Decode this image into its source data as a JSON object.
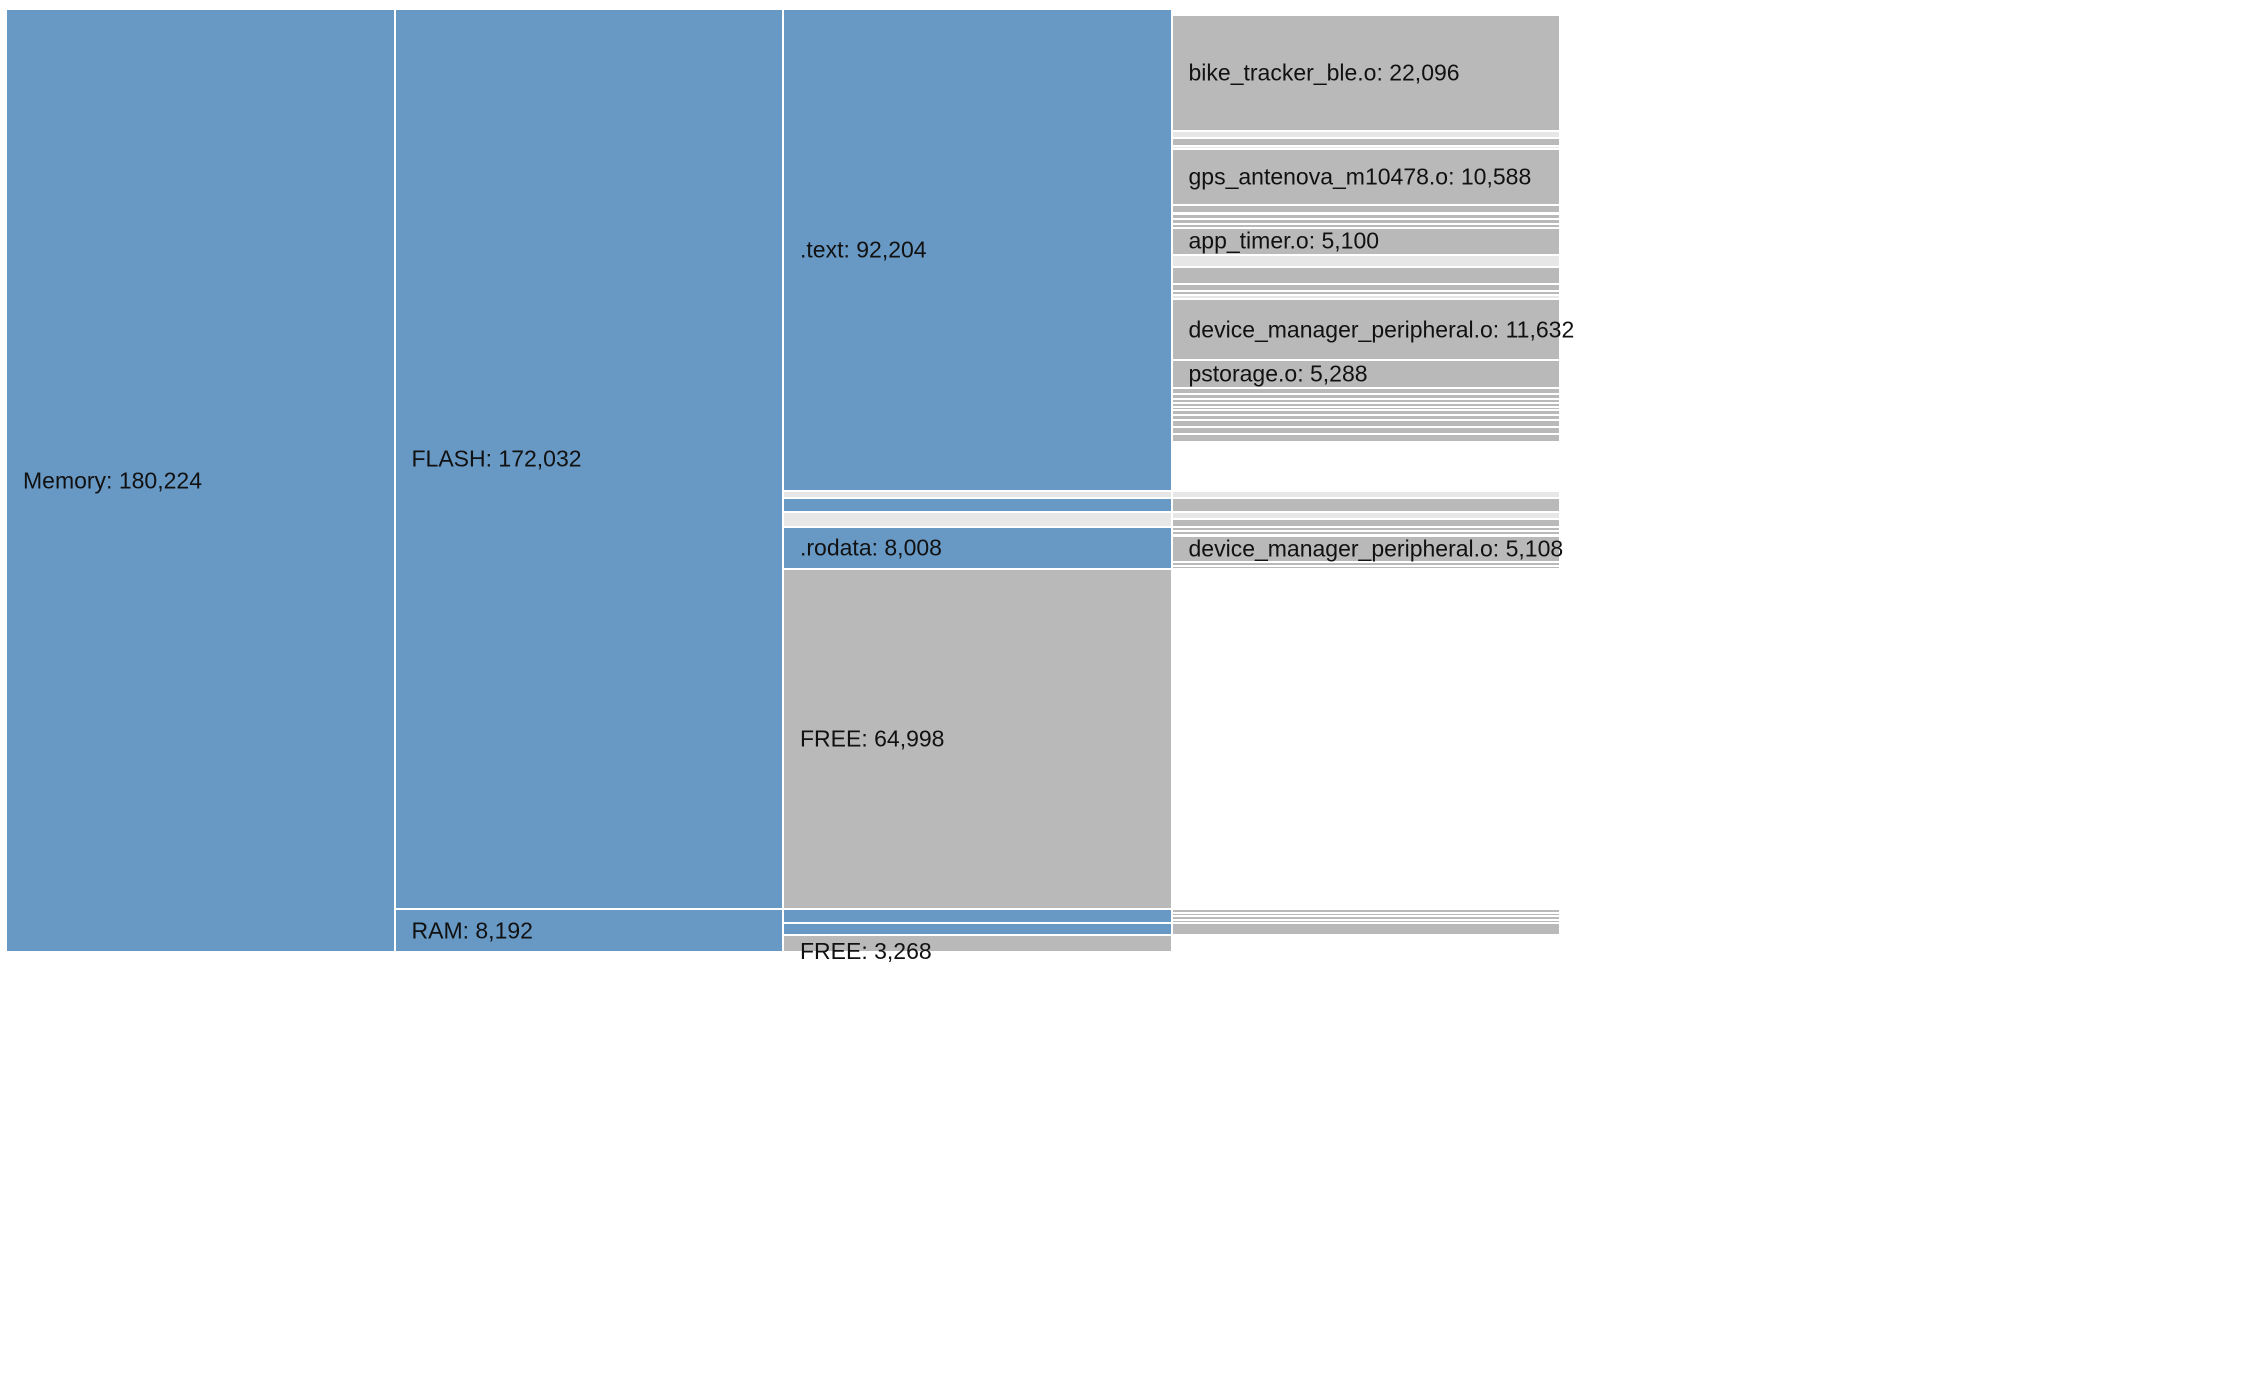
{
  "colors": {
    "used": "#6899c5",
    "free": "#b9b9b9",
    "filler": "#e7e7e7",
    "background": "#ffffff"
  },
  "chart_data": {
    "type": "partition",
    "columns": 4,
    "root": {
      "name": "Memory",
      "value": 180224,
      "label": "Memory: 180,224",
      "kind": "used",
      "children": [
        {
          "name": "FLASH",
          "value": 172032,
          "label": "FLASH: 172,032",
          "kind": "used",
          "children": [
            {
              "name": ".text",
              "value": 92204,
              "label": ".text: 92,204",
              "kind": "used",
              "children": [
                {
                  "name": "",
                  "value": 300,
                  "label": "",
                  "kind": "free"
                },
                {
                  "name": "",
                  "value": 500,
                  "label": "",
                  "kind": "filler"
                },
                {
                  "name": "",
                  "value": 400,
                  "label": "",
                  "kind": "free"
                },
                {
                  "name": "bike_tracker_ble.o",
                  "value": 22096,
                  "label": "bike_tracker_ble.o: 22,096",
                  "kind": "free"
                },
                {
                  "name": "",
                  "value": 1300,
                  "label": "",
                  "kind": "filler"
                },
                {
                  "name": "",
                  "value": 1600,
                  "label": "",
                  "kind": "free"
                },
                {
                  "name": "",
                  "value": 600,
                  "label": "",
                  "kind": "filler"
                },
                {
                  "name": "gps_antenova_m10478.o",
                  "value": 10588,
                  "label": "gps_antenova_m10478.o: 10,588",
                  "kind": "free"
                },
                {
                  "name": "",
                  "value": 1700,
                  "label": "",
                  "kind": "free"
                },
                {
                  "name": "",
                  "value": 1000,
                  "label": "",
                  "kind": "free"
                },
                {
                  "name": "",
                  "value": 1000,
                  "label": "",
                  "kind": "free"
                },
                {
                  "name": "",
                  "value": 800,
                  "label": "",
                  "kind": "free"
                },
                {
                  "name": "app_timer.o",
                  "value": 5100,
                  "label": "app_timer.o: 5,100",
                  "kind": "free"
                },
                {
                  "name": "",
                  "value": 2400,
                  "label": "",
                  "kind": "filler"
                },
                {
                  "name": "",
                  "value": 3200,
                  "label": "",
                  "kind": "free"
                },
                {
                  "name": "",
                  "value": 1400,
                  "label": "",
                  "kind": "free"
                },
                {
                  "name": "",
                  "value": 700,
                  "label": "",
                  "kind": "free"
                },
                {
                  "name": "",
                  "value": 800,
                  "label": "",
                  "kind": "filler"
                },
                {
                  "name": "device_manager_peripheral.o",
                  "value": 11632,
                  "label": "device_manager_peripheral.o: 11,632",
                  "kind": "free"
                },
                {
                  "name": "pstorage.o",
                  "value": 5288,
                  "label": "pstorage.o: 5,288",
                  "kind": "free"
                },
                {
                  "name": "",
                  "value": 1200,
                  "label": "",
                  "kind": "free"
                },
                {
                  "name": "",
                  "value": 1000,
                  "label": "",
                  "kind": "free"
                },
                {
                  "name": "",
                  "value": 700,
                  "label": "",
                  "kind": "free"
                },
                {
                  "name": "",
                  "value": 700,
                  "label": "",
                  "kind": "free"
                },
                {
                  "name": "",
                  "value": 700,
                  "label": "",
                  "kind": "free"
                },
                {
                  "name": "",
                  "value": 900,
                  "label": "",
                  "kind": "free"
                },
                {
                  "name": "",
                  "value": 1000,
                  "label": "",
                  "kind": "free"
                },
                {
                  "name": "",
                  "value": 1200,
                  "label": "",
                  "kind": "free"
                },
                {
                  "name": "",
                  "value": 1400,
                  "label": "",
                  "kind": "free"
                },
                {
                  "name": "",
                  "value": 1604,
                  "label": "",
                  "kind": "free"
                }
              ]
            },
            {
              "name": "",
              "value": 1200,
              "label": "",
              "kind": "filler",
              "children": [
                {
                  "name": "",
                  "value": 1200,
                  "label": "",
                  "kind": "filler"
                }
              ]
            },
            {
              "name": "",
              "value": 2800,
              "label": "",
              "kind": "used",
              "children": [
                {
                  "name": "",
                  "value": 2800,
                  "label": "",
                  "kind": "free"
                }
              ]
            },
            {
              "name": "",
              "value": 2822,
              "label": "",
              "kind": "filler",
              "children": [
                {
                  "name": "",
                  "value": 1300,
                  "label": "",
                  "kind": "filler"
                },
                {
                  "name": "",
                  "value": 1522,
                  "label": "",
                  "kind": "free"
                }
              ]
            },
            {
              "name": ".rodata",
              "value": 8008,
              "label": ".rodata: 8,008",
              "kind": "used",
              "children": [
                {
                  "name": "",
                  "value": 800,
                  "label": "",
                  "kind": "free"
                },
                {
                  "name": "",
                  "value": 800,
                  "label": "",
                  "kind": "free"
                },
                {
                  "name": "device_manager_peripheral.o",
                  "value": 5108,
                  "label": "device_manager_peripheral.o: 5,108",
                  "kind": "free"
                },
                {
                  "name": "",
                  "value": 700,
                  "label": "",
                  "kind": "free"
                },
                {
                  "name": "",
                  "value": 600,
                  "label": "",
                  "kind": "free"
                }
              ]
            },
            {
              "name": "FREE",
              "value": 64998,
              "label": "FREE: 64,998",
              "kind": "free"
            }
          ]
        },
        {
          "name": "RAM",
          "value": 8192,
          "label": "RAM: 8,192",
          "kind": "used",
          "children": [
            {
              "name": "",
              "value": 2700,
              "label": "",
              "kind": "used",
              "children": [
                {
                  "name": "",
                  "value": 700,
                  "label": "",
                  "kind": "free"
                },
                {
                  "name": "",
                  "value": 600,
                  "label": "",
                  "kind": "free"
                },
                {
                  "name": "",
                  "value": 700,
                  "label": "",
                  "kind": "free"
                },
                {
                  "name": "",
                  "value": 700,
                  "label": "",
                  "kind": "free"
                }
              ]
            },
            {
              "name": "",
              "value": 2224,
              "label": "",
              "kind": "used",
              "children": [
                {
                  "name": "",
                  "value": 2224,
                  "label": "",
                  "kind": "free"
                }
              ]
            },
            {
              "name": "FREE",
              "value": 3268,
              "label": "FREE: 3,268",
              "kind": "free"
            }
          ]
        }
      ]
    }
  }
}
